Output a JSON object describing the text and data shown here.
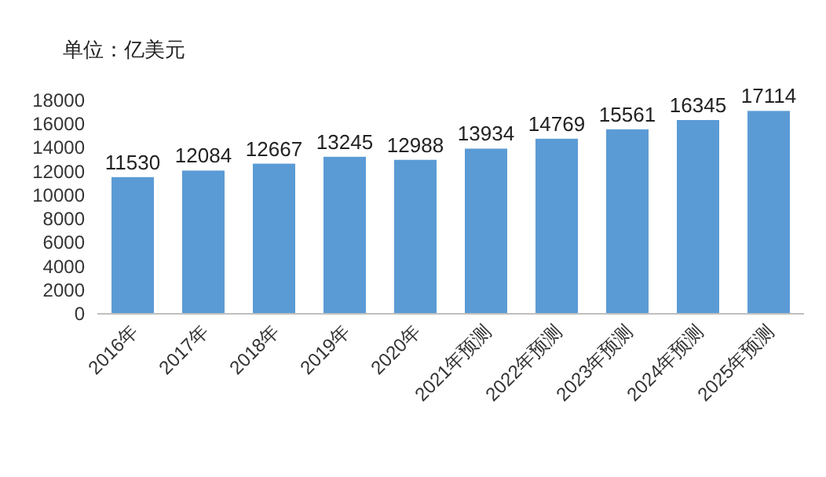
{
  "chart_data": {
    "type": "bar",
    "annotations": [
      "单位：亿美元"
    ],
    "categories": [
      "2016年",
      "2017年",
      "2018年",
      "2019年",
      "2020年",
      "2021年预测",
      "2022年预测",
      "2023年预测",
      "2024年预测",
      "2025年预测"
    ],
    "values": [
      11530,
      12084,
      12667,
      13245,
      12988,
      13934,
      14769,
      15561,
      16345,
      17114
    ],
    "color": "#5b9bd5",
    "ylim": [
      0,
      18000
    ],
    "yticks": [
      0,
      2000,
      4000,
      6000,
      8000,
      10000,
      12000,
      14000,
      16000,
      18000
    ],
    "data_labels": true
  }
}
